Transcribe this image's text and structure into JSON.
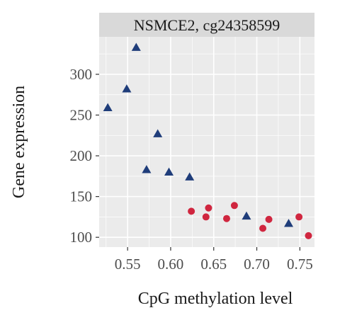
{
  "chart_data": {
    "type": "scatter",
    "title": "NSMCE2, cg24358599",
    "xlabel": "CpG methylation level",
    "ylabel": "Gene expression",
    "xlim": [
      0.517,
      0.767
    ],
    "ylim": [
      88,
      346
    ],
    "xticks": [
      0.55,
      0.6,
      0.65,
      0.7,
      0.75
    ],
    "xtick_labels": [
      "0.55",
      "0.60",
      "0.65",
      "0.70",
      "0.75"
    ],
    "yticks": [
      100,
      150,
      200,
      250,
      300
    ],
    "ytick_labels": [
      "100",
      "150",
      "200",
      "250",
      "300"
    ],
    "grid": true,
    "legend": "none",
    "colors": {
      "panel": "#ebebeb",
      "strip": "#d9d9d9",
      "grid": "#ffffff",
      "triangle": "#1f3d7a",
      "circle": "#d0263f"
    },
    "series": [
      {
        "marker": "triangle",
        "color": "#1f3d7a",
        "points": [
          {
            "x": 0.527,
            "y": 259
          },
          {
            "x": 0.549,
            "y": 282
          },
          {
            "x": 0.56,
            "y": 333
          },
          {
            "x": 0.572,
            "y": 183
          },
          {
            "x": 0.585,
            "y": 227
          },
          {
            "x": 0.598,
            "y": 180
          },
          {
            "x": 0.622,
            "y": 174
          },
          {
            "x": 0.688,
            "y": 126
          },
          {
            "x": 0.737,
            "y": 117
          }
        ]
      },
      {
        "marker": "circle",
        "color": "#d0263f",
        "points": [
          {
            "x": 0.624,
            "y": 132
          },
          {
            "x": 0.641,
            "y": 125
          },
          {
            "x": 0.644,
            "y": 136
          },
          {
            "x": 0.665,
            "y": 123
          },
          {
            "x": 0.674,
            "y": 139
          },
          {
            "x": 0.707,
            "y": 111
          },
          {
            "x": 0.714,
            "y": 122
          },
          {
            "x": 0.749,
            "y": 125
          },
          {
            "x": 0.76,
            "y": 102
          }
        ]
      }
    ]
  }
}
